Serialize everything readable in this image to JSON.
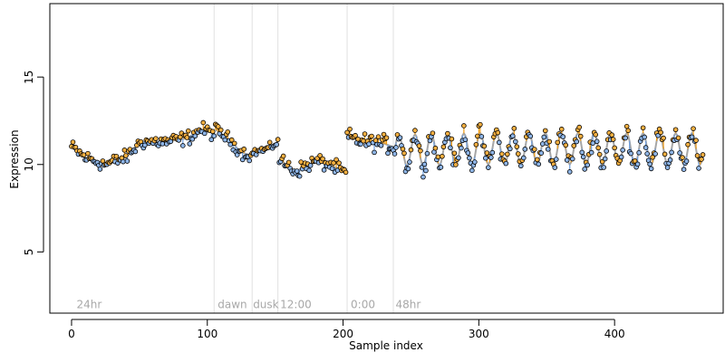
{
  "chart_data": {
    "type": "scatter",
    "xlabel": "Sample index",
    "ylabel": "Expression",
    "xlim": [
      -16,
      480
    ],
    "ylim": [
      1.5,
      19.2
    ],
    "x_ticks": [
      0,
      100,
      200,
      300,
      400
    ],
    "y_ticks": [
      5,
      10,
      15
    ],
    "grid": false,
    "legend": "none",
    "vlines": [
      105,
      133,
      152,
      203,
      237
    ],
    "annotations": [
      {
        "text": "24hr",
        "x": 3
      },
      {
        "text": "dawn",
        "x": 107
      },
      {
        "text": "dusk",
        "x": 133
      },
      {
        "text": "12:00",
        "x": 153
      },
      {
        "text": "0:00",
        "x": 205
      },
      {
        "text": "48hr",
        "x": 238
      }
    ],
    "annotation_y": 2.0,
    "segments": [
      {
        "x0": 0,
        "x1": 50,
        "trend": [
          [
            0,
            11.0
          ],
          [
            10,
            10.4
          ],
          [
            25,
            10.0
          ],
          [
            40,
            10.4
          ],
          [
            50,
            11.2
          ]
        ],
        "noise": 0.35,
        "period": 0
      },
      {
        "x0": 51,
        "x1": 105,
        "trend": [
          [
            51,
            11.3
          ],
          [
            70,
            11.3
          ],
          [
            85,
            11.5
          ],
          [
            95,
            12.0
          ],
          [
            105,
            11.8
          ]
        ],
        "noise": 0.35,
        "period": 0
      },
      {
        "x0": 106,
        "x1": 133,
        "trend": [
          [
            106,
            12.0
          ],
          [
            115,
            11.5
          ],
          [
            125,
            10.7
          ],
          [
            133,
            10.5
          ]
        ],
        "noise": 0.3,
        "period": 0
      },
      {
        "x0": 134,
        "x1": 152,
        "trend": [
          [
            134,
            10.7
          ],
          [
            145,
            10.9
          ],
          [
            152,
            11.3
          ]
        ],
        "noise": 0.2,
        "period": 0
      },
      {
        "x0": 153,
        "x1": 202,
        "trend": [
          [
            153,
            10.3
          ],
          [
            165,
            9.6
          ],
          [
            180,
            10.2
          ],
          [
            190,
            10.0
          ],
          [
            202,
            9.5
          ]
        ],
        "noise": 0.35,
        "period": 0
      },
      {
        "x0": 203,
        "x1": 237,
        "trend": [
          [
            203,
            11.6
          ],
          [
            215,
            11.3
          ],
          [
            230,
            11.2
          ],
          [
            237,
            11.0
          ]
        ],
        "noise": 0.4,
        "period": 0
      },
      {
        "x0": 238,
        "x1": 465,
        "trend": [
          [
            238,
            10.8
          ],
          [
            300,
            10.9
          ],
          [
            400,
            10.9
          ],
          [
            465,
            10.9
          ]
        ],
        "noise": 0.45,
        "period": 12,
        "amplitude": 0.9
      }
    ],
    "colors": {
      "above": "#f5b041",
      "below": "#8fb6e8",
      "trend": "#a6a6a6",
      "up_stem": "#f39c12",
      "down_stem": "#6fa0e0",
      "vline": "#e0e0e0",
      "point_stroke": "#000000"
    }
  }
}
